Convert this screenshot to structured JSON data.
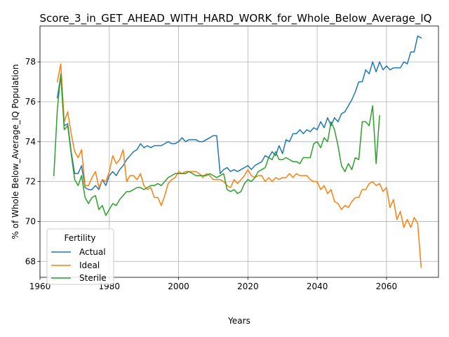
{
  "chart_data": {
    "type": "line",
    "title": "Score_3_in_GET_AHEAD_WITH_HARD_WORK_for_Whole_Below_Average_IQ",
    "xlabel": "Years",
    "ylabel": "% of Whole Below_Average_IQ Population",
    "xlim": [
      1960,
      2075
    ],
    "ylim": [
      67.2,
      79.8
    ],
    "xticks": [
      1960,
      1980,
      2000,
      2020,
      2040,
      2060
    ],
    "yticks": [
      68,
      70,
      72,
      74,
      76,
      78
    ],
    "grid": true,
    "legend": {
      "title": "Fertility",
      "placement": "lower-left"
    },
    "series": [
      {
        "name": "Actual",
        "color": "#1f77b4",
        "x": [
          1965,
          1966,
          1967,
          1968,
          1969,
          1970,
          1971,
          1972,
          1973,
          1974,
          1975,
          1976,
          1977,
          1978,
          1979,
          1980,
          1981,
          1982,
          1983,
          1984,
          1985,
          1986,
          1987,
          1988,
          1989,
          1990,
          1991,
          1992,
          1993,
          1994,
          1995,
          1996,
          1997,
          1998,
          1999,
          2000,
          2001,
          2002,
          2003,
          2004,
          2005,
          2006,
          2007,
          2008,
          2009,
          2010,
          2011,
          2012,
          2013,
          2014,
          2015,
          2016,
          2017,
          2018,
          2019,
          2020,
          2021,
          2022,
          2023,
          2024,
          2025,
          2026,
          2027,
          2028,
          2029,
          2030,
          2031,
          2032,
          2033,
          2034,
          2035,
          2036,
          2037,
          2038,
          2039,
          2040,
          2041,
          2042,
          2043,
          2044,
          2045,
          2046,
          2047,
          2048,
          2049,
          2050,
          2051,
          2052,
          2053,
          2054,
          2055,
          2056,
          2057,
          2058,
          2059,
          2060,
          2061,
          2062,
          2063,
          2064,
          2065,
          2066,
          2067,
          2068,
          2069,
          2070
        ],
        "values": [
          76.2,
          77.3,
          74.8,
          74.9,
          73.5,
          72.4,
          72.4,
          72.8,
          71.7,
          71.6,
          71.6,
          71.8,
          71.6,
          72.1,
          71.8,
          72.3,
          72.5,
          72.3,
          72.6,
          72.8,
          73.1,
          73.3,
          73.5,
          73.6,
          73.9,
          73.7,
          73.8,
          73.7,
          73.8,
          73.8,
          73.8,
          73.9,
          74.0,
          73.9,
          73.9,
          74.0,
          74.2,
          74.0,
          74.1,
          74.1,
          74.1,
          74.0,
          74.0,
          74.1,
          74.2,
          74.3,
          74.3,
          72.4,
          72.6,
          72.7,
          72.5,
          72.6,
          72.5,
          72.6,
          72.7,
          72.8,
          72.6,
          72.8,
          72.9,
          73.0,
          73.3,
          73.2,
          73.5,
          73.3,
          73.8,
          73.4,
          74.1,
          74.0,
          74.4,
          74.4,
          74.6,
          74.4,
          74.6,
          74.5,
          74.7,
          74.6,
          75.0,
          74.7,
          75.2,
          74.8,
          75.2,
          75.0,
          75.4,
          75.5,
          75.8,
          76.1,
          76.5,
          77.0,
          77.0,
          77.6,
          77.4,
          78.0,
          77.5,
          78.0,
          77.6,
          77.8,
          77.6,
          77.7,
          77.7,
          77.7,
          78.0,
          77.9,
          78.5,
          78.5,
          79.3,
          79.2
        ]
      },
      {
        "name": "Ideal",
        "color": "#ff7f0e",
        "x": [
          1965,
          1966,
          1967,
          1968,
          1969,
          1970,
          1971,
          1972,
          1973,
          1974,
          1975,
          1976,
          1977,
          1978,
          1979,
          1980,
          1981,
          1982,
          1983,
          1984,
          1985,
          1986,
          1987,
          1988,
          1989,
          1990,
          1991,
          1992,
          1993,
          1994,
          1995,
          1996,
          1997,
          1998,
          1999,
          2000,
          2001,
          2002,
          2003,
          2004,
          2005,
          2006,
          2007,
          2008,
          2009,
          2010,
          2011,
          2012,
          2013,
          2014,
          2015,
          2016,
          2017,
          2018,
          2019,
          2020,
          2021,
          2022,
          2023,
          2024,
          2025,
          2026,
          2027,
          2028,
          2029,
          2030,
          2031,
          2032,
          2033,
          2034,
          2035,
          2036,
          2037,
          2038,
          2039,
          2040,
          2041,
          2042,
          2043,
          2044,
          2045,
          2046,
          2047,
          2048,
          2049,
          2050,
          2051,
          2052,
          2053,
          2054,
          2055,
          2056,
          2057,
          2058,
          2059,
          2060,
          2061,
          2062,
          2063,
          2064,
          2065,
          2066,
          2067,
          2068,
          2069,
          2070
        ],
        "values": [
          77.0,
          77.9,
          75.0,
          75.5,
          74.4,
          73.5,
          73.2,
          73.6,
          71.8,
          71.8,
          72.2,
          72.5,
          71.7,
          72.1,
          72.0,
          72.5,
          73.3,
          72.9,
          73.1,
          73.6,
          72.0,
          72.3,
          72.3,
          72.1,
          72.4,
          71.8,
          71.6,
          71.7,
          71.2,
          71.2,
          70.8,
          71.3,
          71.9,
          72.1,
          72.2,
          72.5,
          72.4,
          72.5,
          72.5,
          72.5,
          72.5,
          72.4,
          72.2,
          72.4,
          72.3,
          72.1,
          72.1,
          72.1,
          72.0,
          71.8,
          71.7,
          72.1,
          71.9,
          72.1,
          72.3,
          72.6,
          72.3,
          72.2,
          72.3,
          72.3,
          72.0,
          72.2,
          72.0,
          72.2,
          72.1,
          72.2,
          72.2,
          72.4,
          72.2,
          72.4,
          72.3,
          72.3,
          72.3,
          72.1,
          72.0,
          72.0,
          71.6,
          71.8,
          71.4,
          71.6,
          71.0,
          70.9,
          70.6,
          70.8,
          70.7,
          71.0,
          71.2,
          71.2,
          71.6,
          71.6,
          71.9,
          72.0,
          71.8,
          71.9,
          71.5,
          71.7,
          70.7,
          71.1,
          70.1,
          70.5,
          69.7,
          70.1,
          69.7,
          70.2,
          69.9,
          67.7
        ]
      },
      {
        "name": "Sterile",
        "color": "#2ca02c",
        "x": [
          1964,
          1965,
          1966,
          1967,
          1968,
          1969,
          1970,
          1971,
          1972,
          1973,
          1974,
          1975,
          1976,
          1977,
          1978,
          1979,
          1980,
          1981,
          1982,
          1983,
          1984,
          1985,
          1986,
          1987,
          1988,
          1989,
          1990,
          1991,
          1992,
          1993,
          1994,
          1995,
          1996,
          1997,
          1998,
          1999,
          2000,
          2001,
          2002,
          2003,
          2004,
          2005,
          2006,
          2007,
          2008,
          2009,
          2010,
          2011,
          2012,
          2013,
          2014,
          2015,
          2016,
          2017,
          2018,
          2019,
          2020,
          2021,
          2022,
          2023,
          2024,
          2025,
          2026,
          2027,
          2028,
          2029,
          2030,
          2031,
          2032,
          2033,
          2034,
          2035,
          2036,
          2037,
          2038,
          2039,
          2040,
          2041,
          2042,
          2043,
          2044,
          2045,
          2046,
          2047,
          2048,
          2049,
          2050,
          2051,
          2052,
          2053,
          2054,
          2055,
          2056,
          2057,
          2058
        ],
        "values": [
          72.3,
          75.6,
          77.4,
          74.6,
          74.8,
          73.4,
          72.1,
          71.8,
          72.3,
          71.2,
          70.9,
          71.2,
          71.3,
          70.6,
          70.8,
          70.3,
          70.6,
          70.9,
          70.8,
          71.1,
          71.3,
          71.5,
          71.5,
          71.6,
          71.7,
          71.7,
          71.6,
          71.7,
          71.8,
          71.8,
          71.9,
          71.8,
          72.0,
          72.2,
          72.3,
          72.4,
          72.4,
          72.4,
          72.4,
          72.5,
          72.4,
          72.3,
          72.3,
          72.3,
          72.3,
          72.4,
          72.3,
          72.2,
          72.3,
          72.4,
          71.6,
          71.5,
          71.6,
          71.4,
          71.5,
          71.9,
          72.1,
          72.0,
          72.2,
          72.5,
          72.6,
          72.7,
          73.2,
          73.1,
          73.5,
          73.1,
          73.1,
          73.2,
          73.1,
          73.0,
          73.0,
          72.9,
          73.2,
          73.2,
          73.2,
          73.9,
          74.0,
          73.7,
          74.2,
          74.0,
          75.0,
          74.6,
          73.8,
          72.8,
          72.5,
          72.9,
          72.6,
          73.2,
          73.1,
          75.0,
          75.0,
          74.8,
          75.8,
          72.9,
          75.3
        ]
      }
    ]
  }
}
